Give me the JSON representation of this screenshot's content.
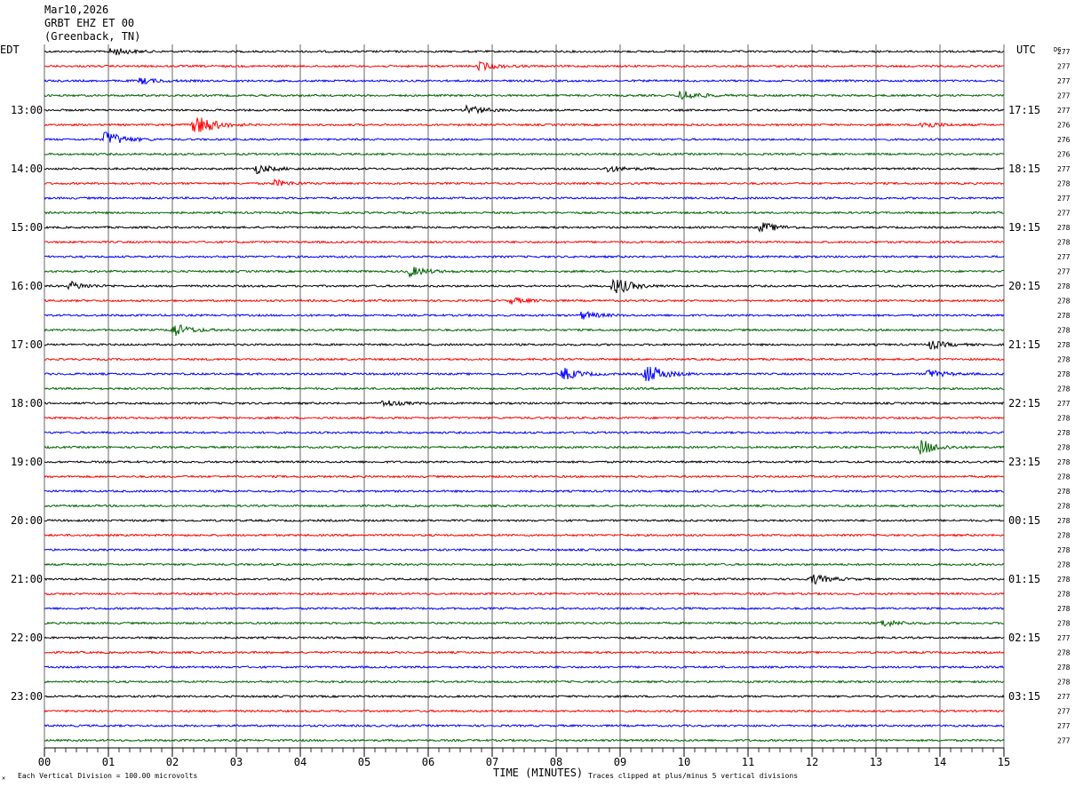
{
  "header": {
    "date": "Mar10,2026",
    "station": "GRBT EHZ ET 00",
    "location": "(Greenback, TN)"
  },
  "labels": {
    "left_timezone": "EDT",
    "right_timezone": "UTC",
    "dc_header": "DC",
    "x_axis_title": "TIME (MINUTES)",
    "footer_left": "Each Vertical Division =  100.00 microvolts",
    "footer_right": "Traces clipped at plus/minus 5 vertical divisions"
  },
  "chart_data": {
    "type": "line",
    "x_ticks": [
      "00",
      "01",
      "02",
      "03",
      "04",
      "05",
      "06",
      "07",
      "08",
      "09",
      "10",
      "11",
      "12",
      "13",
      "14",
      "15"
    ],
    "xlim": [
      0,
      15
    ],
    "trace_colors": [
      "#000000",
      "#ff0000",
      "#0000ff",
      "#006400"
    ],
    "left_hour_labels": [
      "13:00",
      "14:00",
      "15:00",
      "16:00",
      "17:00",
      "18:00",
      "19:00",
      "20:00",
      "21:00",
      "22:00",
      "23:00"
    ],
    "right_hour_labels": [
      "17:15",
      "18:15",
      "19:15",
      "20:15",
      "21:15",
      "22:15",
      "23:15",
      "00:15",
      "01:15",
      "02:15",
      "03:15"
    ],
    "dc_offsets": [
      277,
      277,
      277,
      277,
      277,
      276,
      276,
      276,
      277,
      278,
      277,
      277,
      278,
      278,
      277,
      277,
      278,
      278,
      278,
      278,
      278,
      278,
      278,
      278,
      277,
      278,
      278,
      278,
      278,
      278,
      278,
      278,
      278,
      278,
      278,
      278,
      278,
      278,
      278,
      278,
      277,
      278,
      278,
      278,
      277,
      277,
      277,
      277
    ],
    "events": [
      {
        "trace": 0,
        "minute": 1.05,
        "amp": 1.6
      },
      {
        "trace": 1,
        "minute": 6.8,
        "amp": 1.6
      },
      {
        "trace": 2,
        "minute": 1.5,
        "amp": 1.2
      },
      {
        "trace": 3,
        "minute": 9.95,
        "amp": 2.2
      },
      {
        "trace": 4,
        "minute": 6.6,
        "amp": 2.0
      },
      {
        "trace": 5,
        "minute": 2.35,
        "amp": 5.5
      },
      {
        "trace": 5,
        "minute": 13.7,
        "amp": 1.5
      },
      {
        "trace": 6,
        "minute": 0.95,
        "amp": 3.5
      },
      {
        "trace": 8,
        "minute": 3.3,
        "amp": 1.8
      },
      {
        "trace": 8,
        "minute": 8.8,
        "amp": 1.3
      },
      {
        "trace": 9,
        "minute": 3.6,
        "amp": 1.2
      },
      {
        "trace": 12,
        "minute": 11.2,
        "amp": 2.0
      },
      {
        "trace": 15,
        "minute": 5.7,
        "amp": 2.0
      },
      {
        "trace": 16,
        "minute": 0.4,
        "amp": 1.6
      },
      {
        "trace": 16,
        "minute": 8.9,
        "amp": 3.8
      },
      {
        "trace": 17,
        "minute": 7.3,
        "amp": 1.2
      },
      {
        "trace": 18,
        "minute": 8.4,
        "amp": 1.5
      },
      {
        "trace": 19,
        "minute": 2.0,
        "amp": 2.8
      },
      {
        "trace": 20,
        "minute": 13.85,
        "amp": 1.6
      },
      {
        "trace": 22,
        "minute": 9.4,
        "amp": 4.5
      },
      {
        "trace": 22,
        "minute": 8.1,
        "amp": 2.5
      },
      {
        "trace": 22,
        "minute": 13.8,
        "amp": 1.6
      },
      {
        "trace": 24,
        "minute": 5.3,
        "amp": 1.3
      },
      {
        "trace": 27,
        "minute": 13.7,
        "amp": 3.0
      },
      {
        "trace": 36,
        "minute": 12.0,
        "amp": 2.0
      },
      {
        "trace": 39,
        "minute": 13.1,
        "amp": 1.4
      }
    ]
  }
}
